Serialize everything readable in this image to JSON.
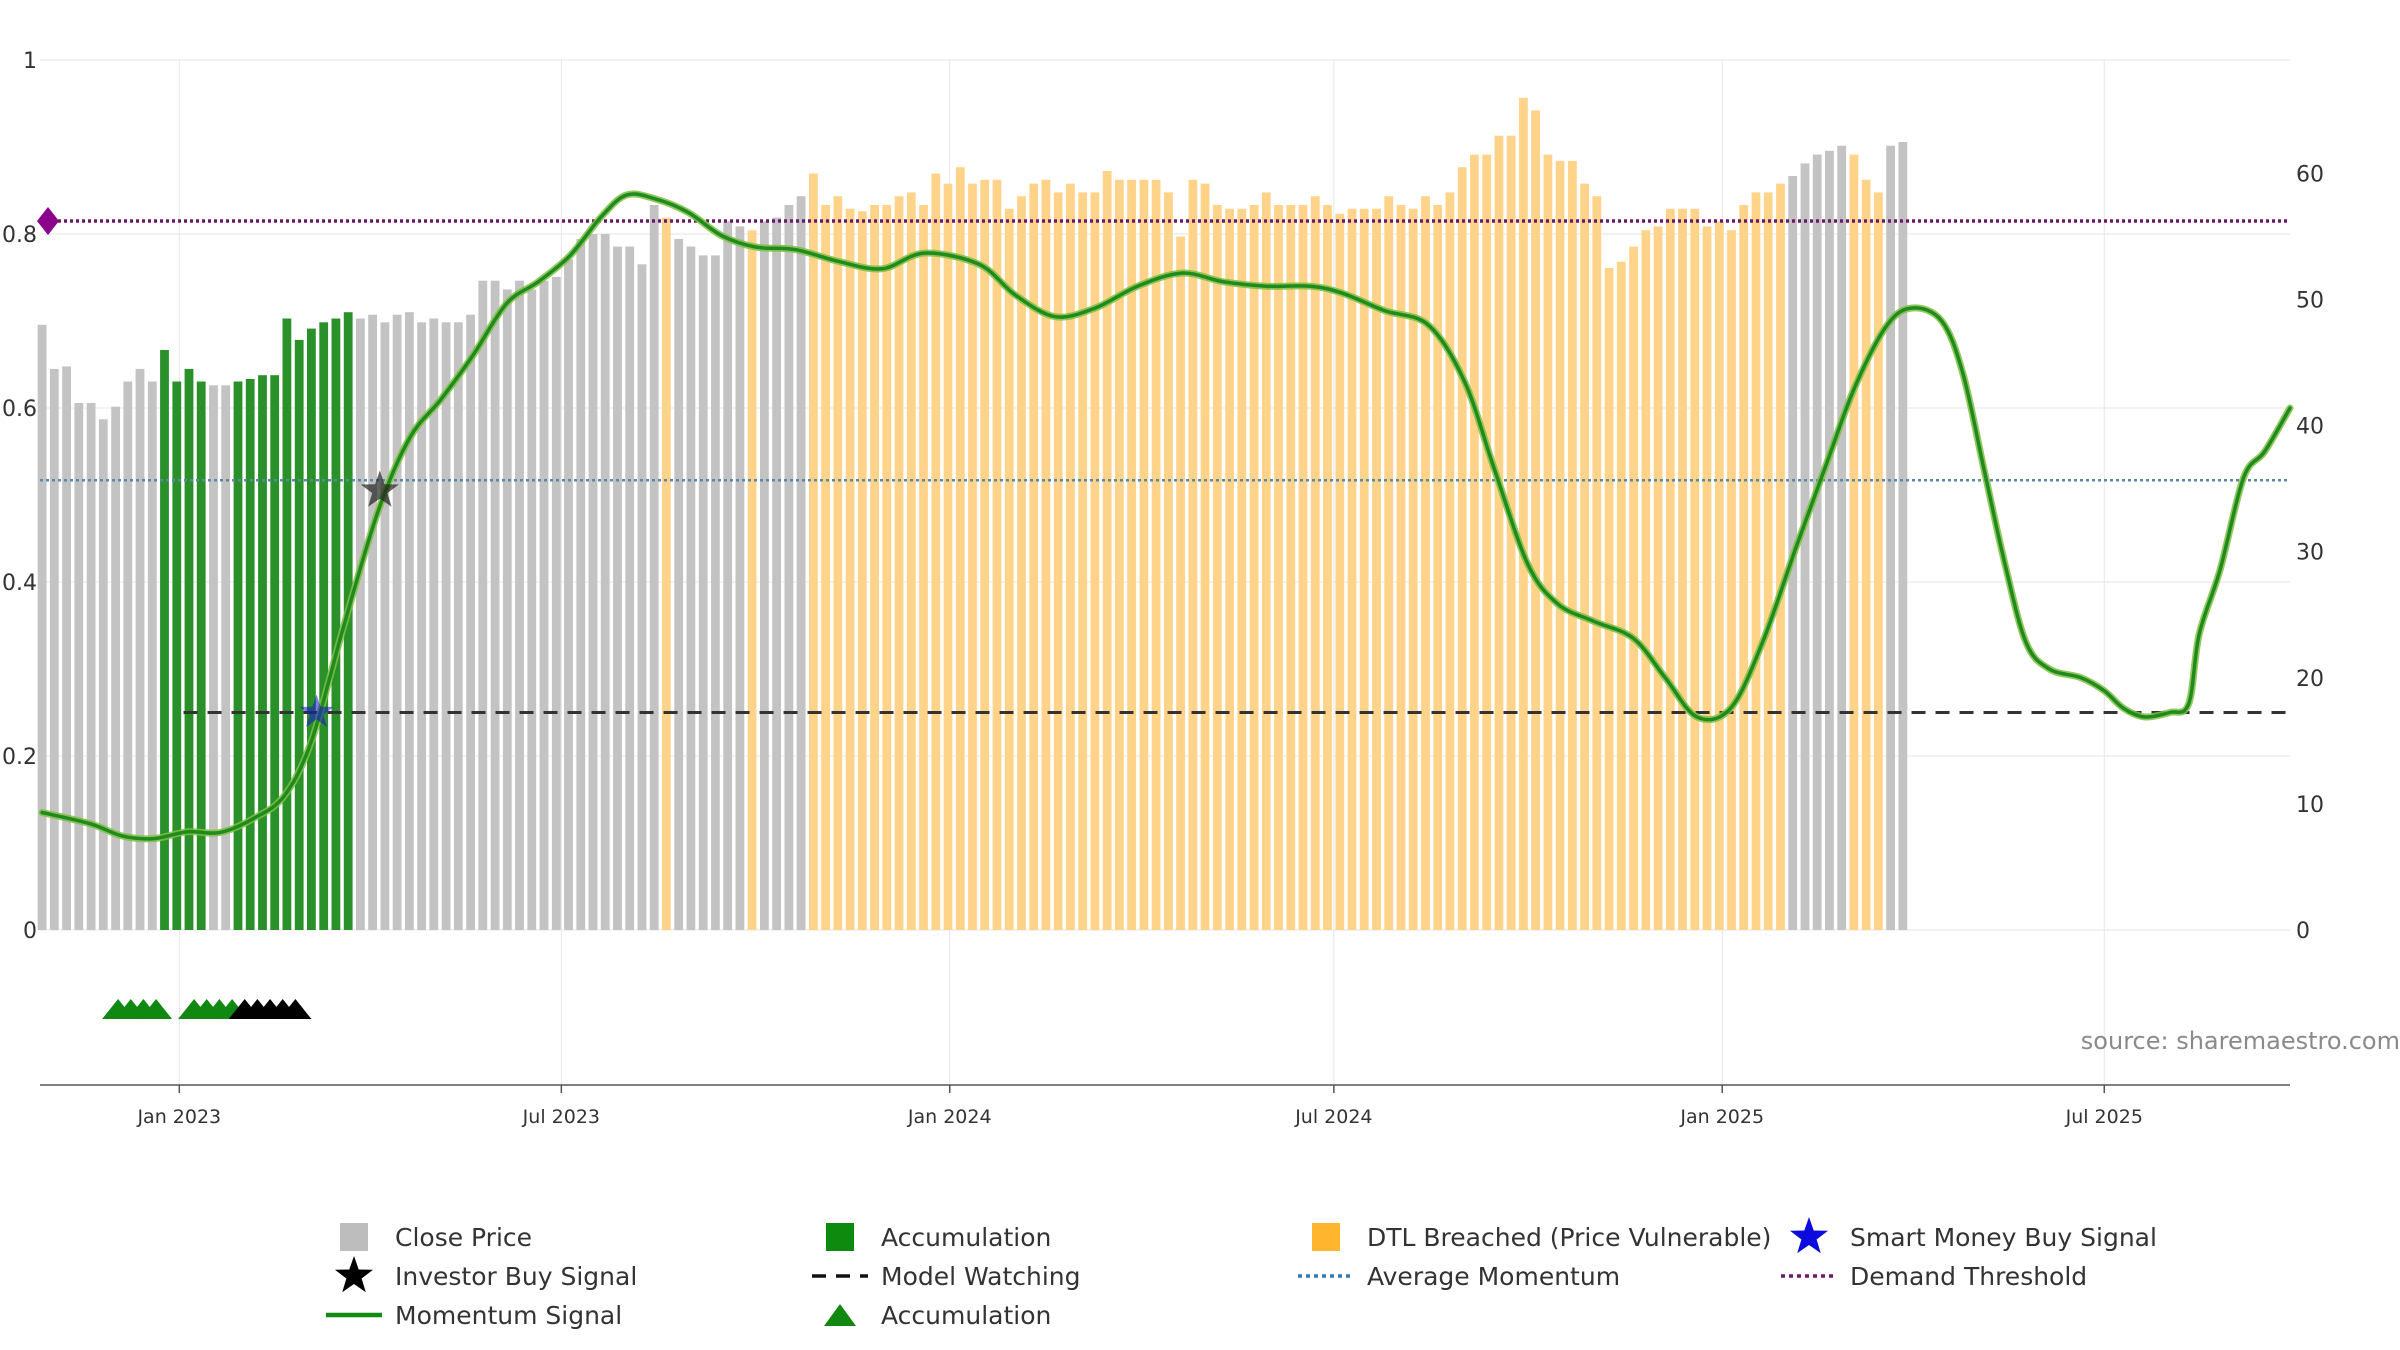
{
  "chart_data": {
    "type": "bar",
    "source_text": "source: sharemaestro.com",
    "left_axis": {
      "ylim": [
        0,
        1
      ],
      "ticks": [
        "0",
        "0.2",
        "0.4",
        "0.6",
        "0.8",
        "1"
      ]
    },
    "right_axis": {
      "ylim": [
        0,
        69
      ],
      "ticks": [
        "0",
        "10",
        "20",
        "30",
        "40",
        "50",
        "60"
      ]
    },
    "x_range": [
      "2022-10-27",
      "2025-09-27"
    ],
    "x_ticks": [
      {
        "label": "Jan 2023",
        "date": "2023-01-01"
      },
      {
        "label": "Jul 2023",
        "date": "2023-07-01"
      },
      {
        "label": "Jan 2024",
        "date": "2024-01-01"
      },
      {
        "label": "Jul 2024",
        "date": "2024-07-01"
      },
      {
        "label": "Jan 2025",
        "date": "2025-01-01"
      },
      {
        "label": "Jul 2025",
        "date": "2025-07-01"
      }
    ],
    "series": [
      {
        "name": "Close Price",
        "type": "bar",
        "start_date": "2022-10-28",
        "step_days": 5.8,
        "values": [
          48,
          44.5,
          44.7,
          41.8,
          41.8,
          40.5,
          41.5,
          43.5,
          44.5,
          43.5,
          46,
          43.5,
          44.5,
          43.5,
          43.2,
          43.2,
          43.5,
          43.7,
          44,
          44,
          48.5,
          46.8,
          47.7,
          48.2,
          48.5,
          49,
          48.5,
          48.8,
          48.2,
          48.8,
          49,
          48.2,
          48.5,
          48.2,
          48.2,
          48.8,
          51.5,
          51.5,
          50.8,
          51.5,
          50.8,
          51.5,
          51.8,
          53.2,
          54.8,
          55.2,
          55.2,
          54.2,
          54.2,
          52.8,
          57.5,
          56.5,
          54.8,
          54.2,
          53.5,
          53.5,
          56.2,
          55.8,
          55.5,
          56.2,
          56.5,
          57.5,
          58.2,
          60,
          57.5,
          58.2,
          57.2,
          57,
          57.5,
          57.5,
          58.2,
          58.5,
          57.5,
          60,
          59.2,
          60.5,
          59.2,
          59.5,
          59.5,
          57.2,
          58.2,
          59.2,
          59.5,
          58.5,
          59.2,
          58.5,
          58.5,
          60.2,
          59.5,
          59.5,
          59.5,
          59.5,
          58.5,
          55,
          59.5,
          59.2,
          57.5,
          57.2,
          57.2,
          57.5,
          58.5,
          57.5,
          57.5,
          57.5,
          58.2,
          57.5,
          56.8,
          57.2,
          57.2,
          57.2,
          58.2,
          57.5,
          57.2,
          58.2,
          57.5,
          58.5,
          60.5,
          61.5,
          61.5,
          63,
          63,
          66,
          65,
          61.5,
          61,
          61,
          59.2,
          58.2,
          52.5,
          53,
          54.2,
          55.5,
          55.8,
          57.2,
          57.2,
          57.2,
          55.8,
          56.2,
          55.5,
          57.5,
          58.5,
          58.5,
          59.2,
          59.8,
          60.8,
          61.5,
          61.8,
          62.2,
          61.5,
          59.5,
          58.5,
          62.2,
          62.5
        ],
        "states": "GGGGGGGGGGAAAAGGAAAAAAAAAAGGGGGGGGGGGGGGGGGGGGGGGGGDGGGGGGDGGGGDDDDDDDDDDDDDDDDDDDDDDDDDDDDDDDDDDDDDDDDDDDDDDDDDDDDDDDDDDDDDDDDDDDDDDDDDDDDDDDDGGGGGDDDGGGDDDDDDDDDDDDDD"
      },
      {
        "name": "Momentum Signal",
        "type": "line",
        "points": [
          [
            "2022-10-28",
            0.135
          ],
          [
            "2022-11-20",
            0.122
          ],
          [
            "2022-12-05",
            0.108
          ],
          [
            "2022-12-20",
            0.105
          ],
          [
            "2023-01-05",
            0.113
          ],
          [
            "2023-01-20",
            0.112
          ],
          [
            "2023-02-05",
            0.128
          ],
          [
            "2023-02-20",
            0.155
          ],
          [
            "2023-03-05",
            0.22
          ],
          [
            "2023-03-20",
            0.35
          ],
          [
            "2023-04-05",
            0.48
          ],
          [
            "2023-04-20",
            0.565
          ],
          [
            "2023-05-05",
            0.61
          ],
          [
            "2023-05-20",
            0.66
          ],
          [
            "2023-06-05",
            0.72
          ],
          [
            "2023-06-20",
            0.745
          ],
          [
            "2023-07-05",
            0.775
          ],
          [
            "2023-07-20",
            0.82
          ],
          [
            "2023-08-01",
            0.845
          ],
          [
            "2023-08-15",
            0.84
          ],
          [
            "2023-08-30",
            0.825
          ],
          [
            "2023-09-15",
            0.798
          ],
          [
            "2023-10-01",
            0.785
          ],
          [
            "2023-10-20",
            0.782
          ],
          [
            "2023-11-10",
            0.768
          ],
          [
            "2023-11-30",
            0.76
          ],
          [
            "2023-12-20",
            0.778
          ],
          [
            "2024-01-15",
            0.765
          ],
          [
            "2024-02-01",
            0.73
          ],
          [
            "2024-02-20",
            0.705
          ],
          [
            "2024-03-10",
            0.715
          ],
          [
            "2024-03-30",
            0.74
          ],
          [
            "2024-04-20",
            0.755
          ],
          [
            "2024-05-10",
            0.745
          ],
          [
            "2024-05-30",
            0.74
          ],
          [
            "2024-06-20",
            0.74
          ],
          [
            "2024-07-05",
            0.732
          ],
          [
            "2024-07-25",
            0.712
          ],
          [
            "2024-08-15",
            0.695
          ],
          [
            "2024-09-01",
            0.63
          ],
          [
            "2024-09-15",
            0.53
          ],
          [
            "2024-10-01",
            0.42
          ],
          [
            "2024-10-15",
            0.375
          ],
          [
            "2024-11-01",
            0.355
          ],
          [
            "2024-11-20",
            0.335
          ],
          [
            "2024-12-05",
            0.29
          ],
          [
            "2024-12-20",
            0.245
          ],
          [
            "2025-01-05",
            0.255
          ],
          [
            "2025-01-20",
            0.33
          ],
          [
            "2025-02-05",
            0.44
          ],
          [
            "2025-02-20",
            0.54
          ],
          [
            "2025-03-05",
            0.625
          ],
          [
            "2025-03-20",
            0.695
          ],
          [
            "2025-04-01",
            0.715
          ],
          [
            "2025-04-15",
            0.7
          ],
          [
            "2025-04-25",
            0.64
          ],
          [
            "2025-05-05",
            0.53
          ],
          [
            "2025-05-15",
            0.42
          ],
          [
            "2025-05-25",
            0.33
          ],
          [
            "2025-06-05",
            0.3
          ],
          [
            "2025-06-20",
            0.29
          ],
          [
            "2025-07-01",
            0.275
          ],
          [
            "2025-07-10",
            0.255
          ],
          [
            "2025-07-20",
            0.245
          ],
          [
            "2025-08-01",
            0.25
          ],
          [
            "2025-08-10",
            0.26
          ],
          [
            "2025-08-15",
            0.34
          ],
          [
            "2025-08-25",
            0.415
          ],
          [
            "2025-09-05",
            0.52
          ],
          [
            "2025-09-15",
            0.55
          ],
          [
            "2025-09-27",
            0.6
          ]
        ]
      },
      {
        "name": "Average Momentum",
        "type": "hline",
        "value": 0.517
      },
      {
        "name": "Model Watching",
        "type": "hline",
        "value": 0.25,
        "x_start": "2023-01-03"
      },
      {
        "name": "Demand Threshold",
        "type": "hline",
        "value": 0.815,
        "start_marker": "diamond"
      },
      {
        "name": "Investor Buy Signal",
        "type": "marker",
        "points": [
          [
            "2023-04-06",
            0.505
          ]
        ]
      },
      {
        "name": "Smart Money Buy Signal",
        "type": "marker",
        "points": [
          [
            "2023-03-07",
            0.25
          ]
        ]
      },
      {
        "name": "Accumulation",
        "type": "triangles",
        "y": -0.09,
        "green": [
          "2022-12-03",
          "2022-12-09",
          "2022-12-15",
          "2022-12-21",
          "2023-01-08",
          "2023-01-14",
          "2023-01-20",
          "2023-01-26"
        ],
        "black": [
          "2023-02-01",
          "2023-02-07",
          "2023-02-13",
          "2023-02-19",
          "2023-02-25"
        ]
      }
    ],
    "colors": {
      "close": "#c3c3c3",
      "accum": "#2a902a",
      "dtl": "#ffd48a",
      "momentum": "#1f8a1f",
      "momentum_shadow": "#7fbf3f",
      "avg": "#5a88a8",
      "watching": "#333333",
      "demand": "#6b1a6b",
      "smart_star": "#1515cc",
      "investor_star": "#222222",
      "grid": "#e6e6e6",
      "axis": "#555555"
    }
  },
  "legend": {
    "items": [
      {
        "label": "Close Price",
        "icon": "gray-square-icon"
      },
      {
        "label": "Accumulation",
        "icon": "green-square-icon"
      },
      {
        "label": "DTL Breached (Price Vulnerable)",
        "icon": "orange-square-icon"
      },
      {
        "label": "Smart Money Buy Signal",
        "icon": "blue-star-icon"
      },
      {
        "label": "Investor Buy Signal",
        "icon": "black-star-icon"
      },
      {
        "label": "Model Watching",
        "icon": "dashed-line-icon"
      },
      {
        "label": "Average Momentum",
        "icon": "dotted-blue-line-icon"
      },
      {
        "label": "Demand Threshold",
        "icon": "dotted-purple-line-icon"
      },
      {
        "label": "Momentum Signal",
        "icon": "green-line-icon"
      },
      {
        "label": "Accumulation",
        "icon": "green-triangle-icon"
      }
    ]
  }
}
